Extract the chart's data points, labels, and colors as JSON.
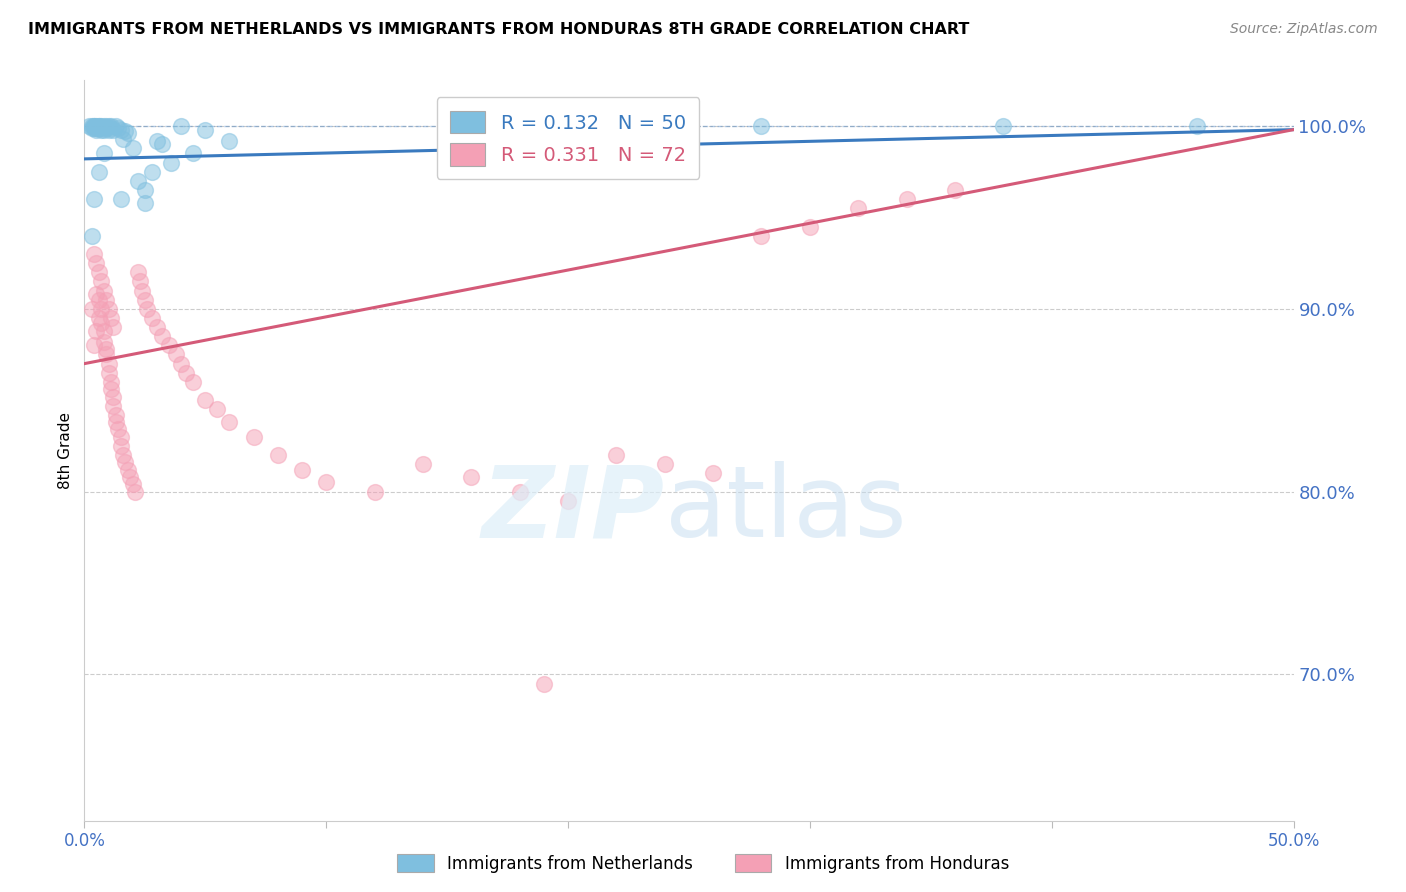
{
  "title": "IMMIGRANTS FROM NETHERLANDS VS IMMIGRANTS FROM HONDURAS 8TH GRADE CORRELATION CHART",
  "source": "Source: ZipAtlas.com",
  "ylabel": "8th Grade",
  "xlim": [
    0.0,
    0.5
  ],
  "ylim": [
    0.62,
    1.025
  ],
  "yticks": [
    0.7,
    0.8,
    0.9,
    1.0
  ],
  "ytick_labels": [
    "70.0%",
    "80.0%",
    "90.0%",
    "100.0%"
  ],
  "xticks": [
    0.0,
    0.1,
    0.2,
    0.3,
    0.4,
    0.5
  ],
  "xtick_labels": [
    "0.0%",
    "",
    "",
    "",
    "",
    "50.0%"
  ],
  "blue_R": 0.132,
  "blue_N": 50,
  "pink_R": 0.331,
  "pink_N": 72,
  "blue_color": "#7fbfdf",
  "pink_color": "#f4a0b5",
  "blue_line_color": "#3a7abf",
  "pink_line_color": "#d45a78",
  "axis_color": "#4472c4",
  "legend_label_blue": "Immigrants from Netherlands",
  "legend_label_pink": "Immigrants from Honduras",
  "blue_scatter_x": [
    0.002,
    0.003,
    0.003,
    0.004,
    0.004,
    0.004,
    0.005,
    0.005,
    0.005,
    0.006,
    0.006,
    0.006,
    0.007,
    0.007,
    0.007,
    0.008,
    0.008,
    0.009,
    0.009,
    0.01,
    0.01,
    0.011,
    0.011,
    0.012,
    0.013,
    0.014,
    0.015,
    0.016,
    0.017,
    0.018,
    0.02,
    0.022,
    0.025,
    0.028,
    0.032,
    0.036,
    0.04,
    0.045,
    0.05,
    0.06,
    0.015,
    0.025,
    0.03,
    0.28,
    0.38,
    0.46,
    0.003,
    0.004,
    0.006,
    0.008
  ],
  "blue_scatter_y": [
    1.0,
    1.0,
    0.999,
    1.0,
    0.999,
    1.0,
    0.998,
    1.0,
    0.999,
    1.0,
    0.999,
    1.0,
    0.998,
    1.0,
    0.999,
    1.0,
    0.998,
    1.0,
    0.999,
    1.0,
    0.998,
    1.0,
    0.999,
    0.998,
    1.0,
    0.999,
    0.998,
    0.993,
    0.997,
    0.996,
    0.988,
    0.97,
    0.965,
    0.975,
    0.99,
    0.98,
    1.0,
    0.985,
    0.998,
    0.992,
    0.96,
    0.958,
    0.992,
    1.0,
    1.0,
    1.0,
    0.94,
    0.96,
    0.975,
    0.985
  ],
  "pink_scatter_x": [
    0.003,
    0.004,
    0.005,
    0.005,
    0.006,
    0.006,
    0.007,
    0.007,
    0.008,
    0.008,
    0.009,
    0.009,
    0.01,
    0.01,
    0.011,
    0.011,
    0.012,
    0.012,
    0.013,
    0.013,
    0.014,
    0.015,
    0.015,
    0.016,
    0.017,
    0.018,
    0.019,
    0.02,
    0.021,
    0.022,
    0.023,
    0.024,
    0.025,
    0.026,
    0.028,
    0.03,
    0.032,
    0.035,
    0.038,
    0.04,
    0.042,
    0.045,
    0.05,
    0.055,
    0.06,
    0.07,
    0.08,
    0.09,
    0.1,
    0.12,
    0.14,
    0.16,
    0.18,
    0.2,
    0.22,
    0.24,
    0.26,
    0.28,
    0.3,
    0.32,
    0.34,
    0.36,
    0.004,
    0.005,
    0.006,
    0.007,
    0.008,
    0.009,
    0.01,
    0.011,
    0.012,
    0.19
  ],
  "pink_scatter_y": [
    0.9,
    0.88,
    0.908,
    0.888,
    0.905,
    0.895,
    0.9,
    0.892,
    0.888,
    0.882,
    0.878,
    0.875,
    0.87,
    0.865,
    0.86,
    0.856,
    0.852,
    0.847,
    0.842,
    0.838,
    0.834,
    0.83,
    0.825,
    0.82,
    0.816,
    0.812,
    0.808,
    0.804,
    0.8,
    0.92,
    0.915,
    0.91,
    0.905,
    0.9,
    0.895,
    0.89,
    0.885,
    0.88,
    0.875,
    0.87,
    0.865,
    0.86,
    0.85,
    0.845,
    0.838,
    0.83,
    0.82,
    0.812,
    0.805,
    0.8,
    0.815,
    0.808,
    0.8,
    0.795,
    0.82,
    0.815,
    0.81,
    0.94,
    0.945,
    0.955,
    0.96,
    0.965,
    0.93,
    0.925,
    0.92,
    0.915,
    0.91,
    0.905,
    0.9,
    0.895,
    0.89,
    0.695
  ],
  "blue_trendline_x": [
    0.0,
    0.5
  ],
  "blue_trendline_y": [
    0.982,
    0.998
  ],
  "pink_trendline_x": [
    0.0,
    0.5
  ],
  "pink_trendline_y": [
    0.87,
    0.998
  ]
}
